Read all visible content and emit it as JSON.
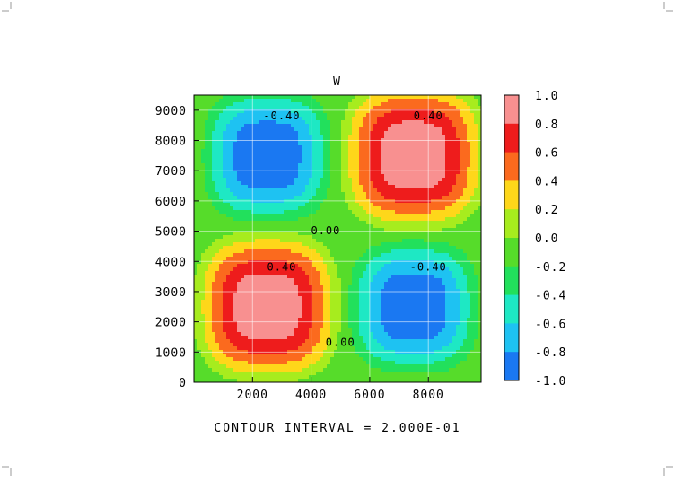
{
  "chart_data": {
    "type": "heatmap",
    "title": "W",
    "footer": "CONTOUR INTERVAL = 2.000E-01",
    "x_ticks": [
      "2000",
      "4000",
      "6000",
      "8000"
    ],
    "x_tick_values": [
      2000,
      4000,
      6000,
      8000
    ],
    "y_ticks": [
      "0",
      "1000",
      "2000",
      "3000",
      "4000",
      "5000",
      "6000",
      "7000",
      "8000",
      "9000"
    ],
    "y_tick_values": [
      0,
      1000,
      2000,
      3000,
      4000,
      5000,
      6000,
      7000,
      8000,
      9000
    ],
    "xlim": [
      0,
      9800
    ],
    "ylim": [
      0,
      9500
    ],
    "field": {
      "description": "four-cell pattern, amplitude 1.0",
      "cells": [
        {
          "x_center": 2500,
          "y_center": 7500,
          "sign": -1
        },
        {
          "x_center": 7500,
          "y_center": 7500,
          "sign": 1
        },
        {
          "x_center": 2500,
          "y_center": 2500,
          "sign": 1
        },
        {
          "x_center": 7500,
          "y_center": 2500,
          "sign": -1
        }
      ]
    },
    "contour_levels": [
      -1.0,
      -0.8,
      -0.6,
      -0.4,
      -0.2,
      0.0,
      0.2,
      0.4,
      0.6,
      0.8,
      1.0
    ],
    "contour_labels": [
      {
        "text": "-0.40",
        "x": 3000,
        "y": 8800
      },
      {
        "text": "0.40",
        "x": 8000,
        "y": 8800
      },
      {
        "text": "0.00",
        "x": 4500,
        "y": 5000
      },
      {
        "text": "0.40",
        "x": 3000,
        "y": 3800
      },
      {
        "text": "-0.40",
        "x": 8000,
        "y": 3800
      },
      {
        "text": "0.00",
        "x": 5000,
        "y": 1300
      }
    ],
    "colorbar": {
      "labels": [
        "1.0",
        "0.8",
        "0.6",
        "0.4",
        "0.2",
        "0.0",
        "-0.2",
        "-0.4",
        "-0.6",
        "-0.8",
        "-1.0"
      ],
      "colors": [
        "#f89090",
        "#ee1c1c",
        "#fb6a1e",
        "#fed71a",
        "#a7ec1e",
        "#56dc2a",
        "#22e05c",
        "#1ee8c4",
        "#1ec2f2",
        "#1a78f2"
      ]
    }
  }
}
